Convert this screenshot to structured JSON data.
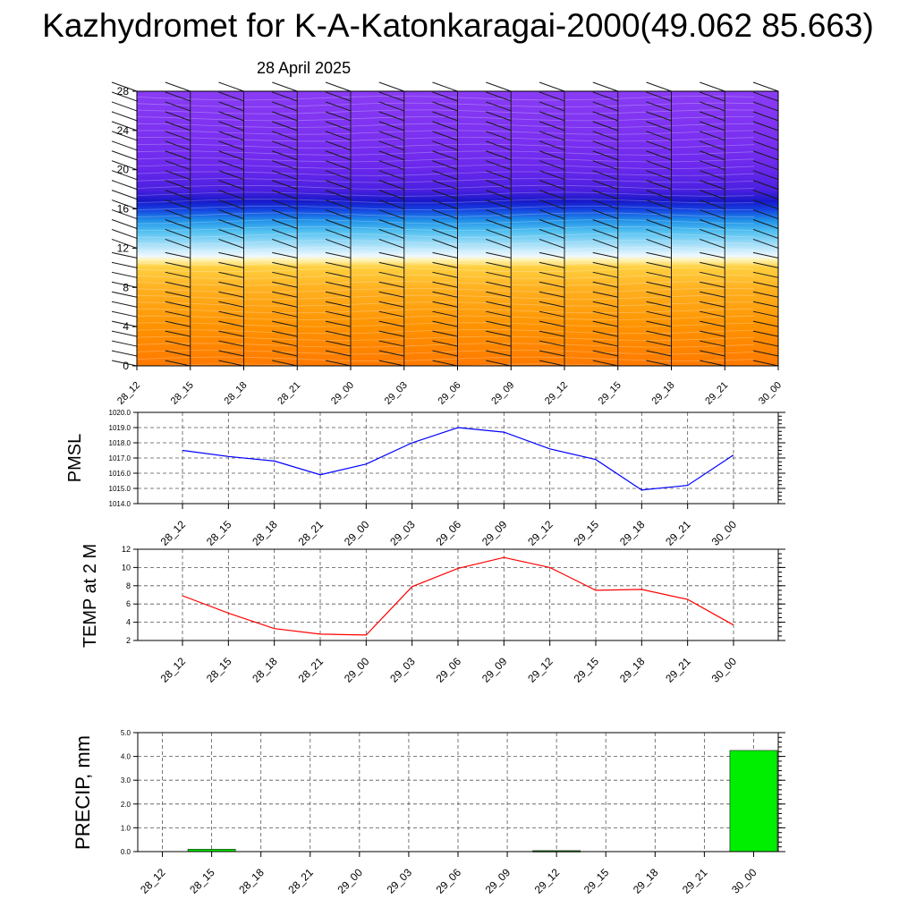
{
  "title": "Kazhydromet for K-A-Katonkaragai-2000(49.062 85.663)",
  "date": "28 April 2025",
  "time_labels": [
    "28_12",
    "28_15",
    "28_18",
    "28_21",
    "29_00",
    "29_03",
    "29_06",
    "29_09",
    "29_12",
    "29_15",
    "29_18",
    "29_21",
    "30_00"
  ],
  "chart_data": [
    {
      "type": "heatmap",
      "description_of_fill": "vertical cross-section: orange/yellow low levels, light blue near 11-12, dark blue band near 16-17, purple above",
      "x": [
        "28_12",
        "28_15",
        "28_18",
        "28_21",
        "29_00",
        "29_03",
        "29_06",
        "29_09",
        "29_12",
        "29_15",
        "29_18",
        "29_21",
        "30_00"
      ],
      "ylim": [
        0,
        28
      ],
      "yticks": [
        "0",
        "4",
        "8",
        "12",
        "16",
        "20",
        "24",
        "28"
      ],
      "wind_barbs": true,
      "colors": [
        "#ff7a00",
        "#ffb000",
        "#ffe080",
        "#e8f4ff",
        "#60c8f0",
        "#1a8ce8",
        "#1010d0",
        "#5020e0",
        "#7a30f0",
        "#8a3cf4"
      ]
    },
    {
      "type": "line",
      "ylabel": "PMSL",
      "x": [
        "28_12",
        "28_15",
        "28_18",
        "28_21",
        "29_00",
        "29_03",
        "29_06",
        "29_09",
        "29_12",
        "29_15",
        "29_18",
        "29_21",
        "30_00"
      ],
      "series": [
        {
          "values": [
            1017.5,
            1017.1,
            1016.8,
            1015.9,
            1016.6,
            1018.0,
            1019.0,
            1018.7,
            1017.6,
            1016.9,
            1014.9,
            1015.2,
            1017.2
          ],
          "color": "#0000ff"
        }
      ],
      "ylim": [
        1014.0,
        1020.0
      ],
      "yticks": [
        "1014.0",
        "1015.0",
        "1016.0",
        "1017.0",
        "1018.0",
        "1019.0",
        "1020.0"
      ],
      "grid": true
    },
    {
      "type": "line",
      "ylabel": "TEMP at 2 M",
      "x": [
        "28_12",
        "28_15",
        "28_18",
        "28_21",
        "29_00",
        "29_03",
        "29_06",
        "29_09",
        "29_12",
        "29_15",
        "29_18",
        "29_21",
        "30_00"
      ],
      "series": [
        {
          "values": [
            6.9,
            5.0,
            3.3,
            2.7,
            2.6,
            7.9,
            9.9,
            11.1,
            10.0,
            7.5,
            7.6,
            6.5,
            3.7
          ],
          "color": "#ff0000"
        }
      ],
      "ylim": [
        2,
        12
      ],
      "yticks": [
        "2",
        "4",
        "6",
        "8",
        "10",
        "12"
      ],
      "grid": true
    },
    {
      "type": "bar",
      "ylabel": "PRECIP, mm",
      "categories": [
        "28_12",
        "28_15",
        "28_18",
        "28_21",
        "29_00",
        "29_03",
        "29_06",
        "29_09",
        "29_12",
        "29_15",
        "29_18",
        "29_21",
        "30_00"
      ],
      "values": [
        0.0,
        0.1,
        0.0,
        0.0,
        0.0,
        0.0,
        0.0,
        0.0,
        0.04,
        0.0,
        0.0,
        0.0,
        4.25
      ],
      "ylim": [
        0.0,
        5.0
      ],
      "yticks": [
        "0.0",
        "1.0",
        "2.0",
        "3.0",
        "4.0",
        "5.0"
      ],
      "bar_color": "#00ee00",
      "grid": true
    }
  ]
}
